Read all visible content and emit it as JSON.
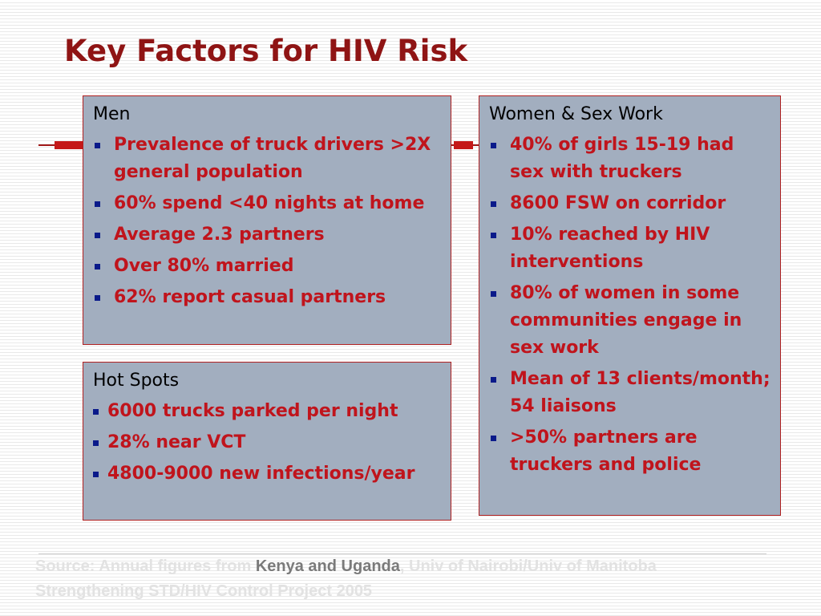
{
  "slide": {
    "title": "Key Factors for HIV Risk"
  },
  "men": {
    "title": "Men",
    "items": [
      "Prevalence of truck drivers >2X general population",
      "60% spend <40 nights at home",
      "Average 2.3 partners",
      "Over 80% married",
      "62% report casual partners"
    ]
  },
  "hotspots": {
    "title": "Hot Spots",
    "items": [
      "6000 trucks parked per night",
      "28% near VCT",
      "4800-9000 new infections/year"
    ]
  },
  "women": {
    "title": "Women & Sex Work",
    "items": [
      "40% of girls 15-19 had sex with truckers",
      "8600 FSW on corridor",
      "10% reached by HIV interventions",
      "80% of women in some communities engage in sex work",
      "Mean of 13 clients/month; 54 liaisons",
      ">50% partners are truckers and police"
    ]
  },
  "source": {
    "prefix": "Source: Annual figures from ",
    "highlight": "Kenya and Uganda",
    "suffix": ", Univ of Nairobi/Univ of Manitoba Strengthening STD/HIV Control Project  2005"
  },
  "colors": {
    "title": "#8f1414",
    "bullet_text": "#c0141c",
    "box_fill": "#a2aebf",
    "box_border": "#b02020",
    "bullet_square": "#0a1a8a"
  },
  "icons": {
    "bullet": "square-bullet-icon"
  }
}
